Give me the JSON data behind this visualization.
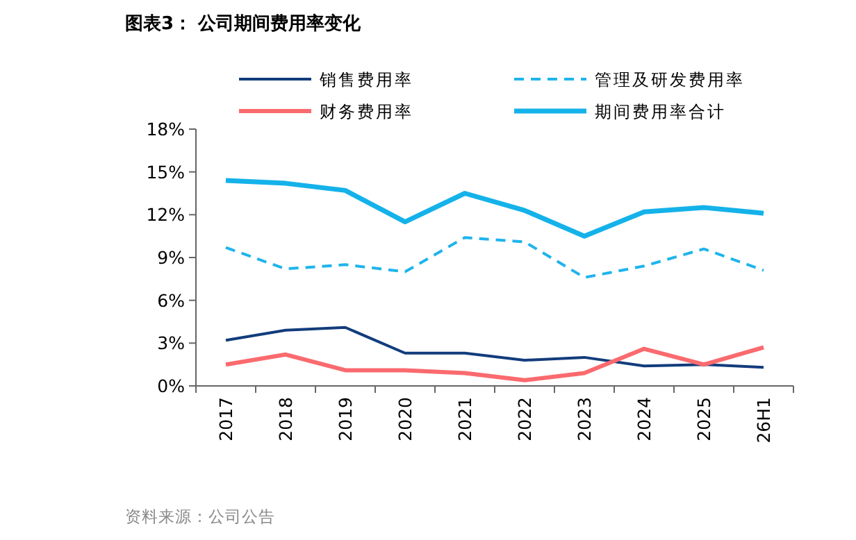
{
  "chart_data": {
    "type": "line",
    "title": "图表3：  公司期间费用率变化",
    "categories": [
      "2017",
      "2018",
      "2019",
      "2020",
      "2021",
      "2022",
      "2023",
      "2024",
      "2025",
      "26H1"
    ],
    "series": [
      {
        "name": "销售费用率",
        "color": "#123c7c",
        "line_style": "solid",
        "values": [
          3.2,
          3.9,
          4.1,
          2.3,
          2.3,
          1.8,
          2.0,
          1.4,
          1.5,
          1.3
        ]
      },
      {
        "name": "管理及研发费用率",
        "color": "#1fb4ec",
        "line_style": "dashed",
        "values": [
          9.7,
          8.2,
          8.5,
          8.0,
          10.4,
          10.1,
          7.6,
          8.4,
          9.6,
          8.1
        ]
      },
      {
        "name": "财务费用率",
        "color": "#fa6a6e",
        "line_style": "solid",
        "values": [
          1.5,
          2.2,
          1.1,
          1.1,
          0.9,
          0.4,
          0.9,
          2.6,
          1.5,
          2.7
        ]
      },
      {
        "name": "期间费用率合计",
        "color": "#15b2ea",
        "line_style": "solid",
        "values": [
          14.4,
          14.2,
          13.7,
          11.5,
          13.5,
          12.3,
          10.5,
          12.2,
          12.5,
          12.1
        ]
      }
    ],
    "ylim": [
      0,
      18
    ],
    "yticks": [
      {
        "value": 0,
        "label": "0%"
      },
      {
        "value": 3,
        "label": "3%"
      },
      {
        "value": 6,
        "label": "6%"
      },
      {
        "value": 9,
        "label": "9%"
      },
      {
        "value": 12,
        "label": "12%"
      },
      {
        "value": 15,
        "label": "15%"
      },
      {
        "value": 18,
        "label": "18%"
      }
    ],
    "grid": false,
    "legend": "top",
    "marker": "none",
    "annotations": [
      "资料来源：公司公告"
    ]
  }
}
